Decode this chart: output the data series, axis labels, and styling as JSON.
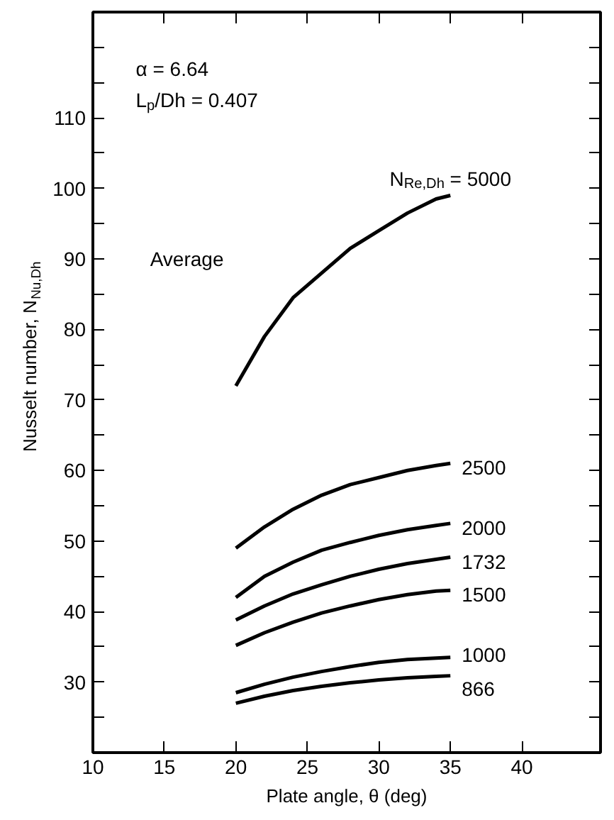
{
  "chart_data": {
    "type": "line",
    "xlabel": "Plate angle, θ (deg)",
    "ylabel": "Nusselt number, N$_{Nu,Dh}$",
    "x": [
      20,
      22,
      24,
      26,
      28,
      30,
      32,
      34,
      35
    ],
    "series": [
      {
        "name": "N$_{Re,Dh}$ = 5000",
        "color": "#000000",
        "values": [
          72,
          79,
          84.5,
          88,
          91.5,
          94,
          96.5,
          98.5,
          99
        ]
      },
      {
        "name": "2500",
        "color": "#000000",
        "values": [
          49,
          52,
          54.5,
          56.5,
          58,
          59,
          60,
          60.7,
          61
        ]
      },
      {
        "name": "2000",
        "color": "#000000",
        "values": [
          42,
          45,
          47,
          48.7,
          49.8,
          50.8,
          51.6,
          52.2,
          52.5
        ]
      },
      {
        "name": "1732",
        "color": "#000000",
        "values": [
          38.8,
          40.8,
          42.5,
          43.8,
          45,
          46,
          46.8,
          47.4,
          47.7
        ]
      },
      {
        "name": "1500",
        "color": "#000000",
        "values": [
          35.2,
          37,
          38.5,
          39.8,
          40.8,
          41.7,
          42.4,
          42.9,
          43
        ]
      },
      {
        "name": "1000",
        "color": "#000000",
        "values": [
          28.5,
          29.7,
          30.7,
          31.5,
          32.2,
          32.8,
          33.2,
          33.4,
          33.5
        ]
      },
      {
        "name": "866",
        "color": "#000000",
        "values": [
          27,
          28,
          28.8,
          29.4,
          29.9,
          30.3,
          30.6,
          30.8,
          30.9
        ]
      }
    ],
    "annotations": [
      "α = 6.64",
      "L$_{p}$/Dh = 0.407",
      "Average"
    ],
    "xlim": [
      10,
      45.5
    ],
    "ylim": [
      20,
      125
    ],
    "xticks": [
      10,
      15,
      20,
      25,
      30,
      35,
      40
    ],
    "yticks": [
      {
        "value": 25,
        "label": null
      },
      30,
      {
        "value": 35,
        "label": null
      },
      40,
      {
        "value": 45,
        "label": null
      },
      50,
      {
        "value": 55,
        "label": null
      },
      60,
      {
        "value": 65,
        "label": null
      },
      70,
      {
        "value": 75,
        "label": null
      },
      80,
      {
        "value": 85,
        "label": null
      },
      90,
      {
        "value": 95,
        "label": null
      },
      100,
      {
        "value": 105,
        "label": null
      },
      110,
      {
        "value": 115,
        "label": null
      },
      {
        "value": 120,
        "label": null
      }
    ],
    "grid": false,
    "legend": false,
    "marker": "none",
    "line_style": "solid"
  }
}
